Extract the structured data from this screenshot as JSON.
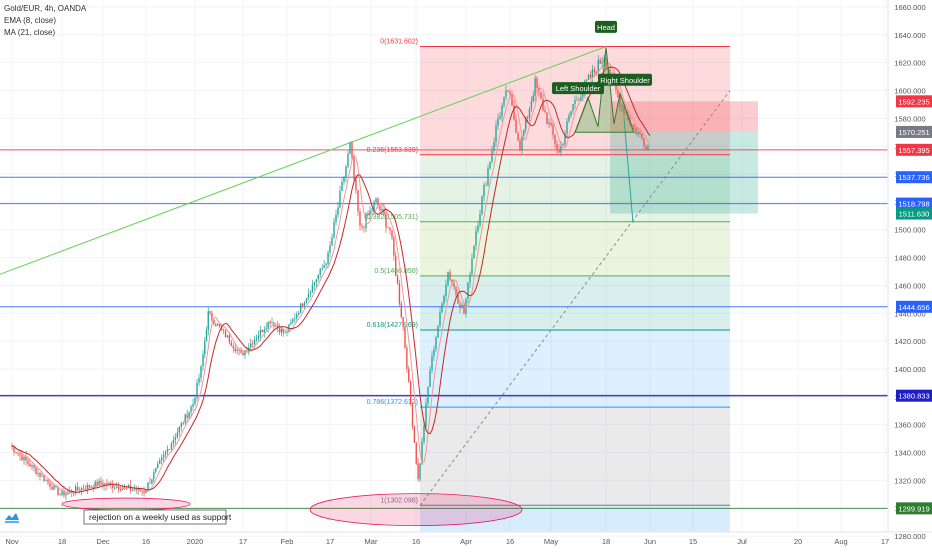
{
  "chart_data": {
    "type": "line",
    "symbol_line": "Gold/EUR, 4h, OANDA",
    "indicators": [
      "EMA (8, close)",
      "MA (21, close)"
    ],
    "y_axis": {
      "min": 1270,
      "max": 1665,
      "ticks": [
        1280,
        1300,
        1320,
        1340,
        1360,
        1380,
        1400,
        1420,
        1440,
        1460,
        1480,
        1500,
        1520,
        1540,
        1560,
        1580,
        1600,
        1620,
        1640,
        1660
      ],
      "position": "right"
    },
    "x_axis": {
      "ticks": [
        "Nov",
        "18",
        "Dec",
        "16",
        "2020",
        "17",
        "Feb",
        "17",
        "Mar",
        "16",
        "Apr",
        "16",
        "May",
        "18",
        "Jun",
        "15",
        "Jul",
        "20",
        "Aug",
        "17"
      ]
    },
    "price_series_anchors": [
      [
        "Nov",
        1345
      ],
      [
        "Nov 18",
        1310
      ],
      [
        "Dec",
        1318
      ],
      [
        "Dec 16",
        1312
      ],
      [
        "2020",
        1375
      ],
      [
        "Jan 6",
        1400
      ],
      [
        "Jan 8",
        1440
      ],
      [
        "Jan 17",
        1410
      ],
      [
        "Jan 29",
        1435
      ],
      [
        "Feb",
        1425
      ],
      [
        "Feb 17",
        1480
      ],
      [
        "Feb 24",
        1560
      ],
      [
        "Feb 28",
        1500
      ],
      [
        "Mar 5",
        1520
      ],
      [
        "Mar 9",
        1500
      ],
      [
        "Mar 12",
        1430
      ],
      [
        "Mar 16",
        1320
      ],
      [
        "Mar 20",
        1400
      ],
      [
        "Mar 26",
        1470
      ],
      [
        "Apr",
        1440
      ],
      [
        "Apr 6",
        1500
      ],
      [
        "Apr 14",
        1580
      ],
      [
        "Apr 16",
        1600
      ],
      [
        "Apr 21",
        1560
      ],
      [
        "Apr 27",
        1605
      ],
      [
        "May",
        1575
      ],
      [
        "May 4",
        1555
      ],
      [
        "May 8",
        1590
      ],
      [
        "May 18",
        1625
      ],
      [
        "May 22",
        1595
      ],
      [
        "May 26",
        1575
      ],
      [
        "Jun",
        1560
      ]
    ],
    "horizontal_levels": [
      {
        "price": 1592.235,
        "label": "1592.235",
        "color": "#f23645"
      },
      {
        "price": 1570.251,
        "label": "1570.251",
        "color": "#787b86"
      },
      {
        "price": 1557.395,
        "label": "1557.395",
        "color": "#f23645"
      },
      {
        "price": 1537.736,
        "label": "1537.736",
        "color": "#2962ff"
      },
      {
        "price": 1518.798,
        "label": "1518.798",
        "color": "#2962ff"
      },
      {
        "price": 1511.63,
        "label": "1511.630",
        "color": "#089981"
      },
      {
        "price": 1444.656,
        "label": "1444.656",
        "color": "#2962ff"
      },
      {
        "price": 1380.833,
        "label": "1380.833",
        "color": "#1e1ec8"
      },
      {
        "price": 1299.919,
        "label": "1299.919",
        "color": "#2e7d32"
      }
    ],
    "fibonacci": [
      {
        "label": "0(1631.602)",
        "price": 1631.602
      },
      {
        "label": "0.236(1553.839)",
        "price": 1553.839
      },
      {
        "label": "0.382(1505.731)",
        "price": 1505.731
      },
      {
        "label": "0.5(1466.850)",
        "price": 1466.85
      },
      {
        "label": "0.618(1427.969)",
        "price": 1427.969
      },
      {
        "label": "0.786(1372.612)",
        "price": 1372.612
      },
      {
        "label": "1(1302.098)",
        "price": 1302.098
      }
    ],
    "pattern_labels": [
      "Head",
      "Left Shoulder",
      "Right Shoulder"
    ],
    "annotation": "rejection on a weekly used as support",
    "grid": true,
    "legend": "top-left"
  }
}
